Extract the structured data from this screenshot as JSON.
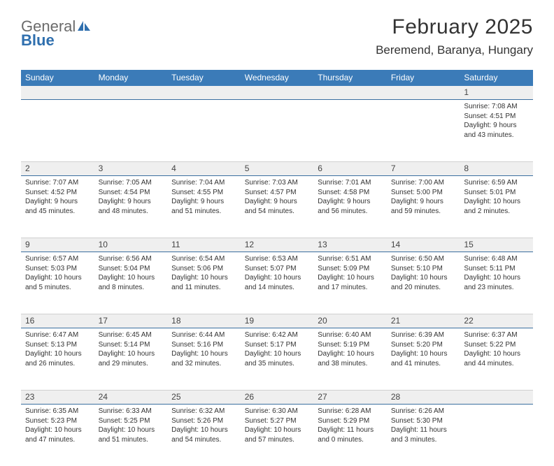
{
  "brand": {
    "name_a": "General",
    "name_b": "Blue"
  },
  "title": "February 2025",
  "location": "Beremend, Baranya, Hungary",
  "colors": {
    "header_bar": "#3b7bb8",
    "rule": "#3b6fa0",
    "band": "#efefef",
    "text": "#333333",
    "brand_gray": "#6b6b6b",
    "brand_blue": "#2f6fae"
  },
  "day_names": [
    "Sunday",
    "Monday",
    "Tuesday",
    "Wednesday",
    "Thursday",
    "Friday",
    "Saturday"
  ],
  "weeks": [
    [
      null,
      null,
      null,
      null,
      null,
      null,
      {
        "n": "1",
        "sunrise": "7:08 AM",
        "sunset": "4:51 PM",
        "daylight": "9 hours and 43 minutes."
      }
    ],
    [
      {
        "n": "2",
        "sunrise": "7:07 AM",
        "sunset": "4:52 PM",
        "daylight": "9 hours and 45 minutes."
      },
      {
        "n": "3",
        "sunrise": "7:05 AM",
        "sunset": "4:54 PM",
        "daylight": "9 hours and 48 minutes."
      },
      {
        "n": "4",
        "sunrise": "7:04 AM",
        "sunset": "4:55 PM",
        "daylight": "9 hours and 51 minutes."
      },
      {
        "n": "5",
        "sunrise": "7:03 AM",
        "sunset": "4:57 PM",
        "daylight": "9 hours and 54 minutes."
      },
      {
        "n": "6",
        "sunrise": "7:01 AM",
        "sunset": "4:58 PM",
        "daylight": "9 hours and 56 minutes."
      },
      {
        "n": "7",
        "sunrise": "7:00 AM",
        "sunset": "5:00 PM",
        "daylight": "9 hours and 59 minutes."
      },
      {
        "n": "8",
        "sunrise": "6:59 AM",
        "sunset": "5:01 PM",
        "daylight": "10 hours and 2 minutes."
      }
    ],
    [
      {
        "n": "9",
        "sunrise": "6:57 AM",
        "sunset": "5:03 PM",
        "daylight": "10 hours and 5 minutes."
      },
      {
        "n": "10",
        "sunrise": "6:56 AM",
        "sunset": "5:04 PM",
        "daylight": "10 hours and 8 minutes."
      },
      {
        "n": "11",
        "sunrise": "6:54 AM",
        "sunset": "5:06 PM",
        "daylight": "10 hours and 11 minutes."
      },
      {
        "n": "12",
        "sunrise": "6:53 AM",
        "sunset": "5:07 PM",
        "daylight": "10 hours and 14 minutes."
      },
      {
        "n": "13",
        "sunrise": "6:51 AM",
        "sunset": "5:09 PM",
        "daylight": "10 hours and 17 minutes."
      },
      {
        "n": "14",
        "sunrise": "6:50 AM",
        "sunset": "5:10 PM",
        "daylight": "10 hours and 20 minutes."
      },
      {
        "n": "15",
        "sunrise": "6:48 AM",
        "sunset": "5:11 PM",
        "daylight": "10 hours and 23 minutes."
      }
    ],
    [
      {
        "n": "16",
        "sunrise": "6:47 AM",
        "sunset": "5:13 PM",
        "daylight": "10 hours and 26 minutes."
      },
      {
        "n": "17",
        "sunrise": "6:45 AM",
        "sunset": "5:14 PM",
        "daylight": "10 hours and 29 minutes."
      },
      {
        "n": "18",
        "sunrise": "6:44 AM",
        "sunset": "5:16 PM",
        "daylight": "10 hours and 32 minutes."
      },
      {
        "n": "19",
        "sunrise": "6:42 AM",
        "sunset": "5:17 PM",
        "daylight": "10 hours and 35 minutes."
      },
      {
        "n": "20",
        "sunrise": "6:40 AM",
        "sunset": "5:19 PM",
        "daylight": "10 hours and 38 minutes."
      },
      {
        "n": "21",
        "sunrise": "6:39 AM",
        "sunset": "5:20 PM",
        "daylight": "10 hours and 41 minutes."
      },
      {
        "n": "22",
        "sunrise": "6:37 AM",
        "sunset": "5:22 PM",
        "daylight": "10 hours and 44 minutes."
      }
    ],
    [
      {
        "n": "23",
        "sunrise": "6:35 AM",
        "sunset": "5:23 PM",
        "daylight": "10 hours and 47 minutes."
      },
      {
        "n": "24",
        "sunrise": "6:33 AM",
        "sunset": "5:25 PM",
        "daylight": "10 hours and 51 minutes."
      },
      {
        "n": "25",
        "sunrise": "6:32 AM",
        "sunset": "5:26 PM",
        "daylight": "10 hours and 54 minutes."
      },
      {
        "n": "26",
        "sunrise": "6:30 AM",
        "sunset": "5:27 PM",
        "daylight": "10 hours and 57 minutes."
      },
      {
        "n": "27",
        "sunrise": "6:28 AM",
        "sunset": "5:29 PM",
        "daylight": "11 hours and 0 minutes."
      },
      {
        "n": "28",
        "sunrise": "6:26 AM",
        "sunset": "5:30 PM",
        "daylight": "11 hours and 3 minutes."
      },
      null
    ]
  ],
  "labels": {
    "sunrise": "Sunrise:",
    "sunset": "Sunset:",
    "daylight": "Daylight:"
  }
}
